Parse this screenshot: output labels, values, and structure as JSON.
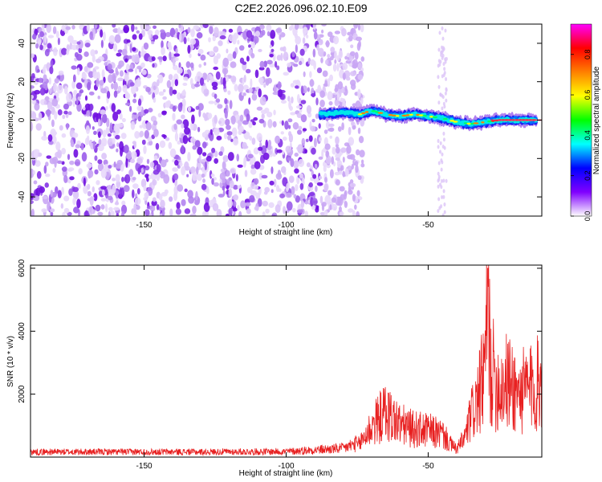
{
  "page": {
    "title": "C2E2.2026.096.02.10.E09"
  },
  "chart_data": [
    {
      "type": "heatmap",
      "title": "C2E2.2026.096.02.10.E09",
      "xlabel": "Height of straight line (km)",
      "ylabel": "Frequency (Hz)",
      "xlim": [
        -190,
        -10
      ],
      "ylim": [
        -50,
        50
      ],
      "xticks": [
        -150,
        -100,
        -50
      ],
      "yticks": [
        -40,
        -20,
        0,
        20,
        40
      ],
      "grid": false,
      "noise_region": {
        "x_range": [
          -190,
          -73
        ],
        "y_range": [
          -50,
          50
        ],
        "note": "scattered low-amplitude blobs"
      },
      "signal_track": [
        {
          "x": -88,
          "y": 3
        },
        {
          "x": -80,
          "y": 4
        },
        {
          "x": -74,
          "y": 3
        },
        {
          "x": -70,
          "y": 5
        },
        {
          "x": -65,
          "y": 3
        },
        {
          "x": -60,
          "y": 2
        },
        {
          "x": -55,
          "y": 3
        },
        {
          "x": -50,
          "y": 2
        },
        {
          "x": -45,
          "y": 1
        },
        {
          "x": -40,
          "y": -1
        },
        {
          "x": -35,
          "y": -2
        },
        {
          "x": -30,
          "y": -1
        },
        {
          "x": -25,
          "y": 0
        },
        {
          "x": -20,
          "y": 0
        },
        {
          "x": -10,
          "y": 0
        }
      ],
      "colorbar": {
        "label": "Normalized spectral amplitude",
        "range": [
          0.0,
          0.95
        ],
        "ticks": [
          "0.0",
          "0.2",
          "0.4",
          "0.6",
          "0.8"
        ],
        "colors": [
          "#ffffff",
          "#8000ff",
          "#0000ff",
          "#00ffff",
          "#00ff00",
          "#ffff00",
          "#ff8000",
          "#ff0000",
          "#ff00ff"
        ]
      }
    },
    {
      "type": "line",
      "xlabel": "Height of straight line (km)",
      "ylabel": "SNR (10 * v/v)",
      "xlim": [
        -190,
        -10
      ],
      "ylim": [
        0,
        6100
      ],
      "xticks": [
        -150,
        -100,
        -50
      ],
      "yticks": [
        2000,
        4000,
        6000
      ],
      "series": [
        {
          "name": "SNR",
          "color": "#e82020",
          "x": [
            -190,
            -160,
            -130,
            -100,
            -80,
            -75,
            -70,
            -65,
            -60,
            -55,
            -50,
            -45,
            -42,
            -40,
            -37,
            -35,
            -32,
            -30,
            -29,
            -28,
            -25,
            -22,
            -18,
            -15,
            -12,
            -10
          ],
          "y": [
            150,
            150,
            150,
            160,
            250,
            400,
            1200,
            1800,
            1300,
            1100,
            1050,
            900,
            500,
            300,
            800,
            1600,
            2500,
            3500,
            6000,
            3500,
            2800,
            3000,
            2500,
            2700,
            2800,
            3200
          ]
        }
      ]
    }
  ]
}
